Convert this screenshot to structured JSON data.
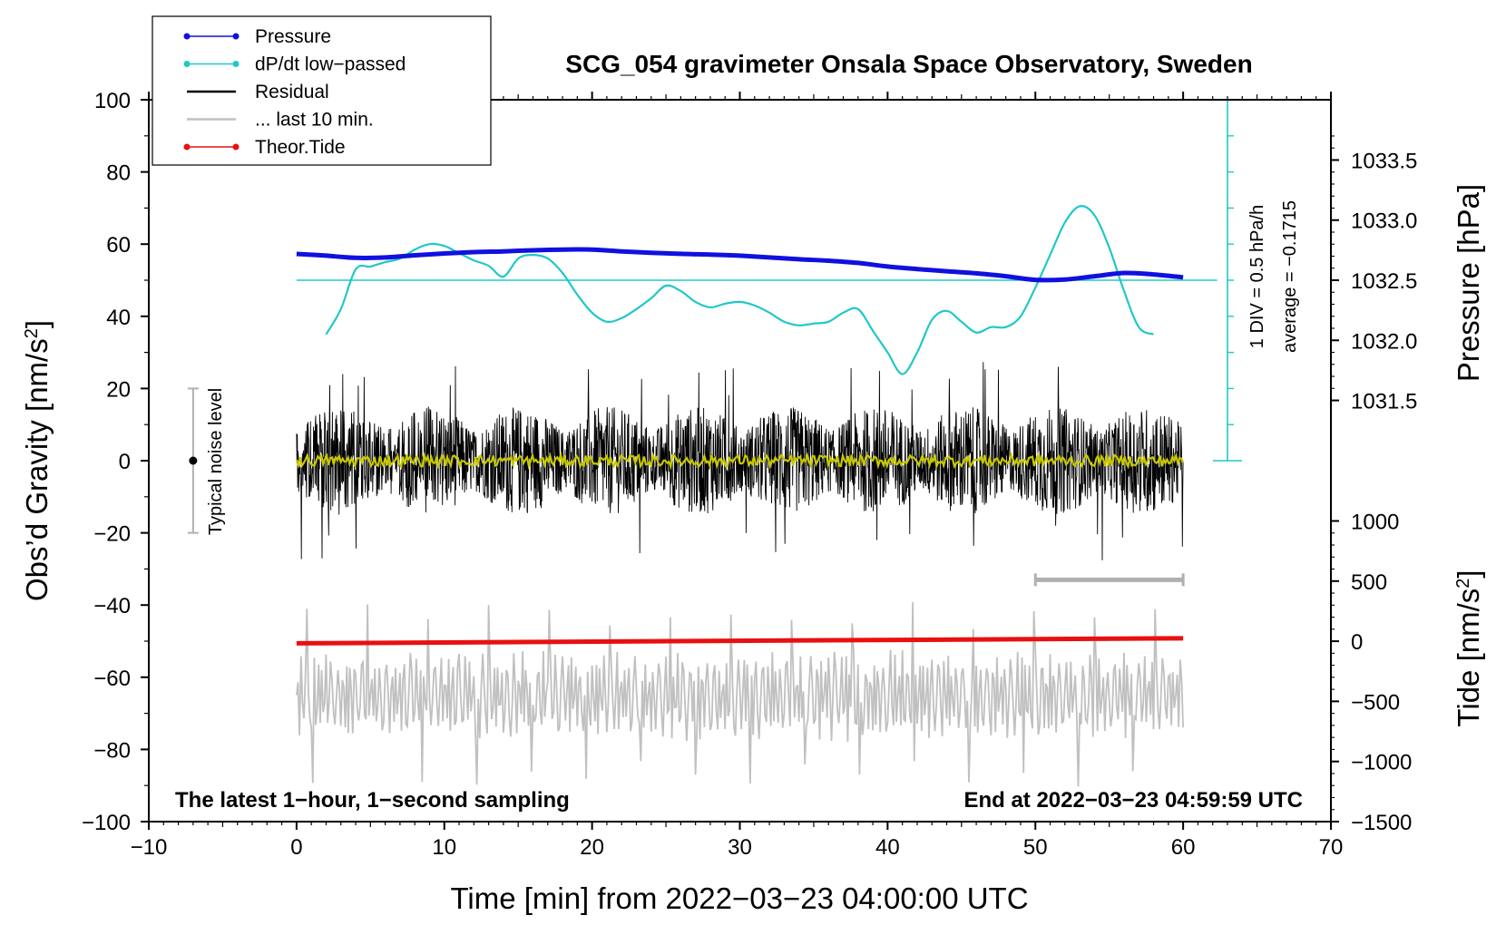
{
  "chart_data": {
    "type": "line",
    "title": "SCG_054 gravimeter Onsala Space Observatory, Sweden",
    "xlabel": "Time [min] from 2022−03−23 04:00:00 UTC",
    "ylabel_left": "Obs’d Gravity [nm/s",
    "ylabel_left_sup": "2",
    "ylabel_left_end": "]",
    "ylabel_right_pressure": "Pressure [hPa]",
    "ylabel_right_tide": "Tide [nm/s",
    "ylabel_right_tide_sup": "2",
    "ylabel_right_tide_end": "]",
    "xlim": [
      -10,
      70
    ],
    "ylim": [
      -100,
      100
    ],
    "x_ticks": [
      -10,
      0,
      10,
      20,
      30,
      40,
      50,
      60,
      70
    ],
    "x_tick_labels": [
      "−10",
      "0",
      "10",
      "20",
      "30",
      "40",
      "50",
      "60",
      "70"
    ],
    "y_ticks": [
      -100,
      -80,
      -60,
      -40,
      -20,
      0,
      20,
      40,
      60,
      80,
      100
    ],
    "y_tick_labels": [
      "−100",
      "−80",
      "−60",
      "−40",
      "−20",
      "0",
      "20",
      "40",
      "60",
      "80",
      "100"
    ],
    "pressure_ticks": [
      1031.5,
      1032.0,
      1032.5,
      1033.0,
      1033.5
    ],
    "pressure_tick_labels": [
      "1031.5",
      "1032.0",
      "1032.5",
      "1033.0",
      "1033.5"
    ],
    "pressure_axis_mapping": {
      "hpa": [
        1032.5,
        1033.5
      ],
      "gravity": [
        50,
        83.3
      ]
    },
    "tide_ticks": [
      -1500,
      -1000,
      -500,
      0,
      500,
      1000
    ],
    "tide_tick_labels": [
      "−1500",
      "−1000",
      "−500",
      "0",
      "500",
      "1000"
    ],
    "tide_axis_mapping": {
      "tide": [
        -1500,
        1000
      ],
      "gravity": [
        -100,
        -16.7
      ]
    },
    "legend": [
      {
        "label": "Pressure",
        "color": "#1010e0",
        "marker": true
      },
      {
        "label": "dP/dt low−passed",
        "color": "#20c8c8",
        "marker": true
      },
      {
        "label": "Residual",
        "color": "#000000",
        "marker": false
      },
      {
        "label": "... last 10 min.",
        "color": "#c0c0c0",
        "marker": false
      },
      {
        "label": "Theor.Tide",
        "color": "#e81010",
        "marker": true
      }
    ],
    "colors": {
      "pressure": "#1010e0",
      "dpdt": "#20c8c8",
      "residual": "#000000",
      "residual_smooth": "#c8c800",
      "last10": "#c0c0c0",
      "tide": "#e81010",
      "noise_bar": "#b0b0b0"
    },
    "pressure": {
      "x": [
        0,
        2,
        4,
        6,
        8,
        10,
        12,
        14,
        16,
        18,
        20,
        22,
        24,
        26,
        28,
        30,
        32,
        34,
        36,
        38,
        40,
        42,
        44,
        46,
        48,
        50,
        52,
        54,
        56,
        58,
        60
      ],
      "y_gravity": [
        57.3,
        56.8,
        56.2,
        56.3,
        56.9,
        57.4,
        57.8,
        58.0,
        58.3,
        58.5,
        58.5,
        58.0,
        57.6,
        57.3,
        57.1,
        56.8,
        56.3,
        55.8,
        55.4,
        54.8,
        53.8,
        53.1,
        52.5,
        51.9,
        51.1,
        50.1,
        50.2,
        51.1,
        52.0,
        51.6,
        50.8
      ]
    },
    "dpdt": {
      "x": [
        2,
        3,
        4,
        5,
        6,
        7,
        8,
        9,
        10,
        11,
        12,
        13,
        14,
        15,
        16,
        17,
        18,
        19,
        20,
        21,
        22,
        23,
        24,
        25,
        26,
        27,
        28,
        29,
        30,
        31,
        32,
        33,
        34,
        35,
        36,
        37,
        38,
        39,
        40,
        41,
        42,
        43,
        44,
        45,
        46,
        47,
        48,
        49,
        50,
        51,
        52,
        53,
        54,
        55,
        56,
        57,
        58
      ],
      "y_gravity": [
        35,
        42,
        53,
        53.8,
        55,
        56,
        58.5,
        60,
        59.5,
        57.5,
        55.5,
        54,
        51,
        56,
        57,
        56,
        52,
        46,
        41,
        38.5,
        39.5,
        42,
        45,
        48.5,
        47,
        44,
        42.5,
        43.5,
        44,
        43,
        41,
        38.5,
        37.5,
        38,
        38.5,
        41,
        42,
        36,
        30,
        24,
        30,
        39,
        41.5,
        38.5,
        35.5,
        37,
        37,
        40,
        48,
        57,
        66,
        70.5,
        68,
        59,
        47,
        37,
        35
      ]
    },
    "dpdt_average_level": 50,
    "residual": {
      "x_range": [
        0,
        60
      ],
      "amplitude_typical": 15,
      "amplitude_max": 28,
      "min": -29,
      "max": 28
    },
    "residual_smooth": {
      "x_range": [
        0,
        60
      ],
      "mean": 0
    },
    "last10": {
      "x_range": [
        0,
        60
      ],
      "center": -65,
      "min": -92,
      "max": -33
    },
    "last10_window_marker": {
      "x": [
        50,
        60
      ],
      "y": -33
    },
    "tide": {
      "x": [
        0,
        60
      ],
      "y_gravity": [
        -50.6,
        -49.2
      ]
    },
    "noise_level": {
      "x": -7,
      "y": [
        -20,
        20
      ],
      "center": 0
    },
    "scale_bar": {
      "x": 63,
      "y": [
        0,
        100
      ],
      "divisions": 10
    }
  },
  "annotations": {
    "noise_label": "Typical noise level",
    "scale_label_1": "1 DIV = 0.5 hPa/h",
    "scale_label_2": "average = −0.1715",
    "footer_left": "The latest 1−hour, 1−second sampling",
    "footer_right": "End at 2022−03−23 04:59:59 UTC"
  }
}
